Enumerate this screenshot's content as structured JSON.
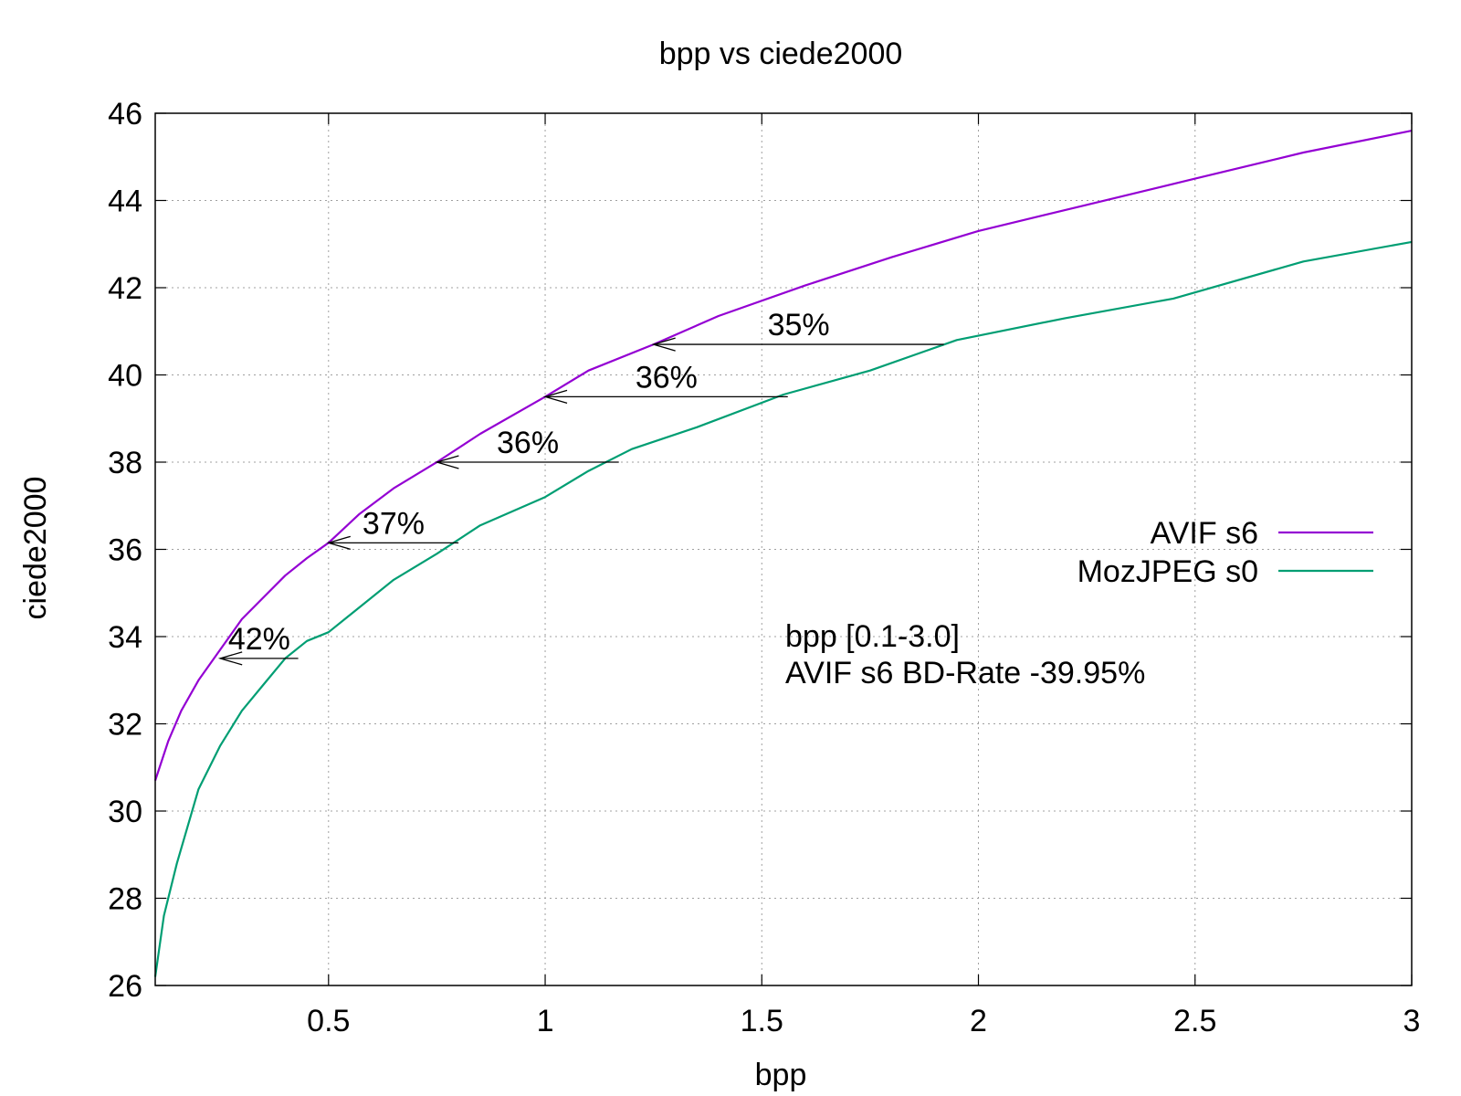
{
  "chart_data": {
    "type": "line",
    "title": "bpp vs ciede2000",
    "xlabel": "bpp",
    "ylabel": "ciede2000",
    "xlim": [
      0.1,
      3.0
    ],
    "ylim": [
      26,
      46
    ],
    "x_ticks": [
      0.5,
      1,
      1.5,
      2,
      2.5,
      3
    ],
    "x_tick_labels": [
      "0.5",
      "1",
      "1.5",
      "2",
      "2.5",
      "3"
    ],
    "y_ticks": [
      26,
      28,
      30,
      32,
      34,
      36,
      38,
      40,
      42,
      44,
      46
    ],
    "y_tick_labels": [
      "26",
      "28",
      "30",
      "32",
      "34",
      "36",
      "38",
      "40",
      "42",
      "44",
      "46"
    ],
    "grid": true,
    "legend_position": "right",
    "series": [
      {
        "name": "AVIF s6",
        "color": "#9400d3",
        "x": [
          0.1,
          0.13,
          0.16,
          0.2,
          0.25,
          0.3,
          0.35,
          0.4,
          0.45,
          0.5,
          0.57,
          0.65,
          0.75,
          0.85,
          1.0,
          1.1,
          1.25,
          1.4,
          1.6,
          1.8,
          2.0,
          2.25,
          2.5,
          2.75,
          3.0
        ],
        "y": [
          30.7,
          31.6,
          32.3,
          33.0,
          33.7,
          34.4,
          34.9,
          35.4,
          35.8,
          36.15,
          36.8,
          37.4,
          38.0,
          38.65,
          39.5,
          40.1,
          40.7,
          41.35,
          42.05,
          42.7,
          43.3,
          43.9,
          44.5,
          45.1,
          45.6
        ]
      },
      {
        "name": "MozJPEG s0",
        "color": "#009e73",
        "x": [
          0.1,
          0.12,
          0.15,
          0.2,
          0.25,
          0.3,
          0.35,
          0.4,
          0.45,
          0.5,
          0.55,
          0.65,
          0.75,
          0.85,
          1.0,
          1.1,
          1.2,
          1.35,
          1.55,
          1.75,
          1.95,
          2.2,
          2.45,
          2.75,
          3.0
        ],
        "y": [
          26.2,
          27.6,
          28.8,
          30.5,
          31.5,
          32.3,
          32.9,
          33.5,
          33.9,
          34.1,
          34.5,
          35.3,
          35.9,
          36.55,
          37.2,
          37.8,
          38.3,
          38.8,
          39.55,
          40.1,
          40.8,
          41.3,
          41.75,
          42.6,
          43.05
        ]
      }
    ],
    "annotations": [
      {
        "label": "35%",
        "y": 40.7,
        "x_from": 1.92,
        "x_to": 1.25
      },
      {
        "label": "36%",
        "y": 39.5,
        "x_from": 1.56,
        "x_to": 1.0
      },
      {
        "label": "36%",
        "y": 38.0,
        "x_from": 1.17,
        "x_to": 0.75
      },
      {
        "label": "37%",
        "y": 36.15,
        "x_from": 0.8,
        "x_to": 0.5
      },
      {
        "label": "42%",
        "y": 33.5,
        "x_from": 0.43,
        "x_to": 0.25
      }
    ],
    "bd_rate": {
      "color": "#00ff00",
      "line1": "bpp [0.1-3.0]",
      "line2": "AVIF s6 BD-Rate -39.95%"
    }
  }
}
